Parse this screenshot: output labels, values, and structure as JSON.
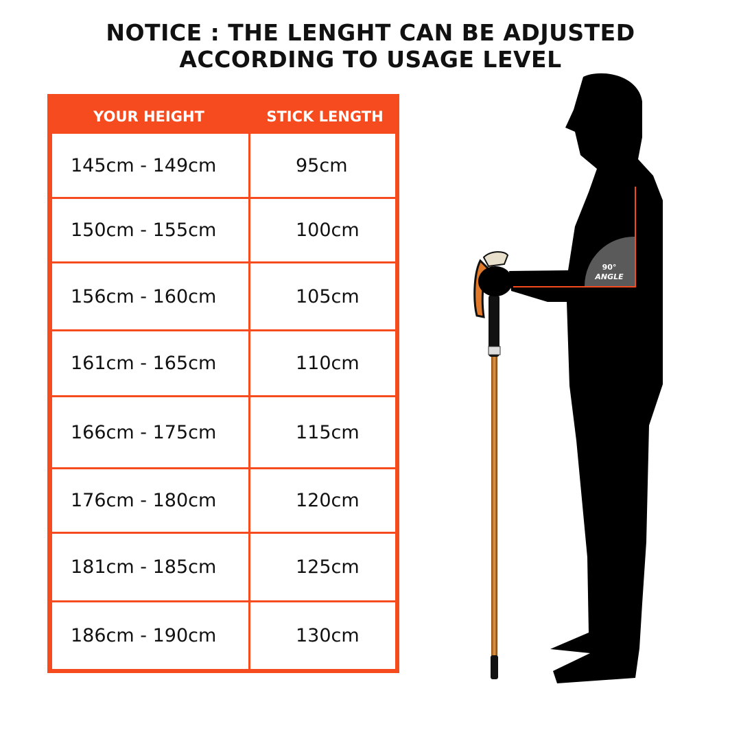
{
  "notice": {
    "line1": "NOTICE : THE LENGHT CAN BE ADJUSTED",
    "line2": "ACCORDING TO USAGE LEVEL"
  },
  "table": {
    "headers": [
      "YOUR HEIGHT",
      "STICK LENGTH"
    ],
    "rows": [
      [
        "145cm - 149cm",
        "95cm"
      ],
      [
        "150cm - 155cm",
        "100cm"
      ],
      [
        "156cm - 160cm",
        "105cm"
      ],
      [
        "161cm - 165cm",
        "110cm"
      ],
      [
        "166cm - 175cm",
        "115cm"
      ],
      [
        "176cm - 180cm",
        "120cm"
      ],
      [
        "181cm - 185cm",
        "125cm"
      ],
      [
        "186cm - 190cm",
        "130cm"
      ]
    ]
  },
  "figure": {
    "angle_value": "90°",
    "angle_label": "ANGLE"
  },
  "colors": {
    "accent": "#f54b1f",
    "silhouette": "#000000",
    "angle_fill": "#5a5a5a"
  }
}
